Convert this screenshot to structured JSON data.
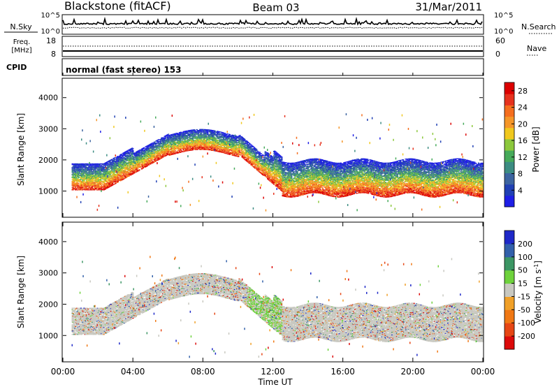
{
  "header": {
    "station": "Blackstone (fitACF)",
    "beam": "Beam 03",
    "date": "31/Mar/2011"
  },
  "noise_panel": {
    "left_label": "N.Sky",
    "left_ticks": [
      "10^5",
      "10^0"
    ],
    "right_label": "N.Search",
    "right_ticks": [
      "10^5",
      "10^0"
    ]
  },
  "freq_panel": {
    "left_label_line1": "Freq.",
    "left_label_line2": "[MHz]",
    "left_ticks": [
      "18",
      "8"
    ],
    "right_label": "Nave",
    "right_ticks": [
      "60",
      "0"
    ]
  },
  "cpid": {
    "label": "CPID",
    "value": "normal (fast stereo) 153"
  },
  "time_axis": {
    "label": "Time UT",
    "ticks": [
      "00:00",
      "04:00",
      "08:00",
      "12:00",
      "16:00",
      "20:00",
      "00:00"
    ]
  },
  "chart_data": [
    {
      "type": "heatmap",
      "name": "Power",
      "ylabel": "Slant Range [km]",
      "yticks": [
        1000,
        2000,
        3000,
        4000
      ],
      "ylim": [
        180,
        4600
      ],
      "xlim_hours": [
        0,
        24
      ],
      "colorbar": {
        "label": "Power [dB]",
        "ticks": [
          4,
          8,
          12,
          16,
          20,
          24,
          28
        ],
        "colors": [
          "#1e1ee6",
          "#2040b4",
          "#3c64a0",
          "#3c8c82",
          "#46aa5a",
          "#8cc83c",
          "#f0c81e",
          "#f59628",
          "#f56e1e",
          "#e6321e",
          "#dc0000"
        ]
      }
    },
    {
      "type": "heatmap",
      "name": "Velocity",
      "ylabel": "Slant Range [km]",
      "yticks": [
        1000,
        2000,
        3000,
        4000
      ],
      "ylim": [
        180,
        4600
      ],
      "xlim_hours": [
        0,
        24
      ],
      "colorbar": {
        "label": "Velocity [m s",
        "label_sup": "-1",
        "label_end": "]",
        "ticks": [
          "200",
          "100",
          "50",
          "15",
          "-15",
          "-50",
          "-100",
          "-200"
        ],
        "colors": [
          "#1e28c8",
          "#3260aa",
          "#3c9664",
          "#6ed23c",
          "#c8c8c0",
          "#f0a028",
          "#f07814",
          "#e64614",
          "#dc0a0a"
        ]
      }
    }
  ]
}
